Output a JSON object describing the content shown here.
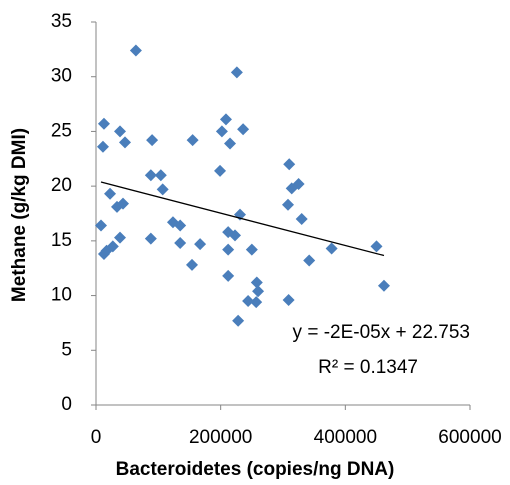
{
  "chart_data": {
    "type": "scatter",
    "x_label": "Bacteroidetes (copies/ng DNA)",
    "y_label": "Methane (g/kg DMI)",
    "color": "#4a7ebb",
    "x": [
      64000,
      38500,
      12800,
      11200,
      46500,
      90000,
      104000,
      107000,
      88000,
      22500,
      33700,
      43300,
      8000,
      27000,
      12800,
      38500,
      88000,
      123500,
      135000,
      135000,
      154000,
      167000,
      208500,
      202000,
      236000,
      215000,
      226000,
      199000,
      231000,
      212000,
      223000,
      212000,
      212000,
      250000,
      258000,
      260000,
      257000,
      244000,
      228000,
      310000,
      314000,
      325000,
      308000,
      330000,
      342000,
      378000,
      309000,
      450000,
      462000,
      17000,
      155000
    ],
    "y": [
      32.4,
      25.0,
      25.7,
      23.6,
      24.0,
      24.2,
      21.0,
      19.7,
      21.0,
      19.3,
      18.1,
      18.4,
      16.4,
      14.5,
      13.8,
      15.3,
      15.2,
      16.7,
      16.4,
      14.8,
      12.8,
      14.7,
      26.1,
      25.0,
      25.2,
      23.9,
      30.4,
      21.4,
      17.4,
      15.8,
      15.5,
      14.2,
      11.8,
      14.2,
      11.2,
      10.4,
      9.4,
      9.5,
      7.7,
      22.0,
      19.8,
      20.2,
      18.3,
      17.0,
      13.2,
      14.3,
      9.6,
      14.5,
      10.9,
      14.1,
      24.2
    ],
    "xlim": [
      0,
      600000
    ],
    "xticks": [
      0,
      200000,
      400000,
      600000
    ],
    "ylim": [
      0,
      35
    ],
    "yticks": [
      0,
      5,
      10,
      15,
      20,
      25,
      30,
      35
    ],
    "trendline": {
      "equation": "y = -2E-05x + 22.753",
      "r_squared": "R² = 0.1347"
    }
  }
}
